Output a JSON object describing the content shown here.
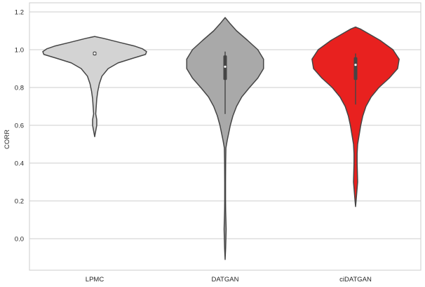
{
  "chart_data": {
    "type": "violin",
    "title": "",
    "xlabel": "",
    "ylabel": "CORR",
    "ylim": [
      -0.17,
      1.22
    ],
    "yticks": [
      0.0,
      0.2,
      0.4,
      0.6,
      0.8,
      1.0,
      1.2
    ],
    "ytick_labels": [
      "0.0",
      "0.2",
      "0.4",
      "0.6",
      "0.8",
      "1.0",
      "1.2"
    ],
    "grid": "horizontal",
    "categories": [
      "LPMC",
      "DATGAN",
      "ciDATGAN"
    ],
    "violins": [
      {
        "name": "LPMC",
        "color": "#d3d3d3",
        "min": 0.54,
        "max": 1.07,
        "q1": 0.97,
        "median": 0.98,
        "q3": 0.99,
        "whisker_low": 0.97,
        "whisker_high": 0.99,
        "density": [
          [
            0.54,
            0.0
          ],
          [
            0.57,
            0.02
          ],
          [
            0.6,
            0.04
          ],
          [
            0.63,
            0.04
          ],
          [
            0.66,
            0.02
          ],
          [
            0.7,
            0.03
          ],
          [
            0.74,
            0.04
          ],
          [
            0.78,
            0.06
          ],
          [
            0.82,
            0.09
          ],
          [
            0.86,
            0.14
          ],
          [
            0.9,
            0.26
          ],
          [
            0.93,
            0.45
          ],
          [
            0.955,
            0.74
          ],
          [
            0.975,
            0.98
          ],
          [
            0.99,
            1.0
          ],
          [
            1.005,
            0.92
          ],
          [
            1.02,
            0.76
          ],
          [
            1.04,
            0.46
          ],
          [
            1.06,
            0.17
          ],
          [
            1.07,
            0.0
          ]
        ]
      },
      {
        "name": "DATGAN",
        "color": "#a9a9a9",
        "min": -0.11,
        "max": 1.17,
        "q1": 0.84,
        "median": 0.91,
        "q3": 0.97,
        "whisker_low": 0.66,
        "whisker_high": 0.99,
        "density": [
          [
            -0.11,
            0.0
          ],
          [
            -0.05,
            0.01
          ],
          [
            0.0,
            0.015
          ],
          [
            0.05,
            0.02
          ],
          [
            0.1,
            0.015
          ],
          [
            0.15,
            0.01
          ],
          [
            0.2,
            0.008
          ],
          [
            0.3,
            0.008
          ],
          [
            0.4,
            0.01
          ],
          [
            0.48,
            0.015
          ],
          [
            0.52,
            0.04
          ],
          [
            0.56,
            0.07
          ],
          [
            0.6,
            0.1
          ],
          [
            0.65,
            0.15
          ],
          [
            0.7,
            0.22
          ],
          [
            0.75,
            0.32
          ],
          [
            0.8,
            0.47
          ],
          [
            0.85,
            0.63
          ],
          [
            0.9,
            0.74
          ],
          [
            0.95,
            0.74
          ],
          [
            1.0,
            0.63
          ],
          [
            1.05,
            0.43
          ],
          [
            1.1,
            0.22
          ],
          [
            1.14,
            0.09
          ],
          [
            1.17,
            0.0
          ]
        ]
      },
      {
        "name": "ciDATGAN",
        "color": "#e8211f",
        "min": 0.17,
        "max": 1.12,
        "q1": 0.84,
        "median": 0.92,
        "q3": 0.96,
        "whisker_low": 0.71,
        "whisker_high": 0.98,
        "density": [
          [
            0.17,
            0.0
          ],
          [
            0.2,
            0.01
          ],
          [
            0.25,
            0.025
          ],
          [
            0.3,
            0.04
          ],
          [
            0.35,
            0.035
          ],
          [
            0.4,
            0.03
          ],
          [
            0.45,
            0.03
          ],
          [
            0.5,
            0.04
          ],
          [
            0.55,
            0.07
          ],
          [
            0.6,
            0.1
          ],
          [
            0.65,
            0.14
          ],
          [
            0.7,
            0.2
          ],
          [
            0.75,
            0.3
          ],
          [
            0.8,
            0.45
          ],
          [
            0.85,
            0.65
          ],
          [
            0.9,
            0.81
          ],
          [
            0.95,
            0.84
          ],
          [
            1.0,
            0.72
          ],
          [
            1.05,
            0.47
          ],
          [
            1.08,
            0.28
          ],
          [
            1.11,
            0.09
          ],
          [
            1.12,
            0.0
          ]
        ]
      }
    ]
  }
}
